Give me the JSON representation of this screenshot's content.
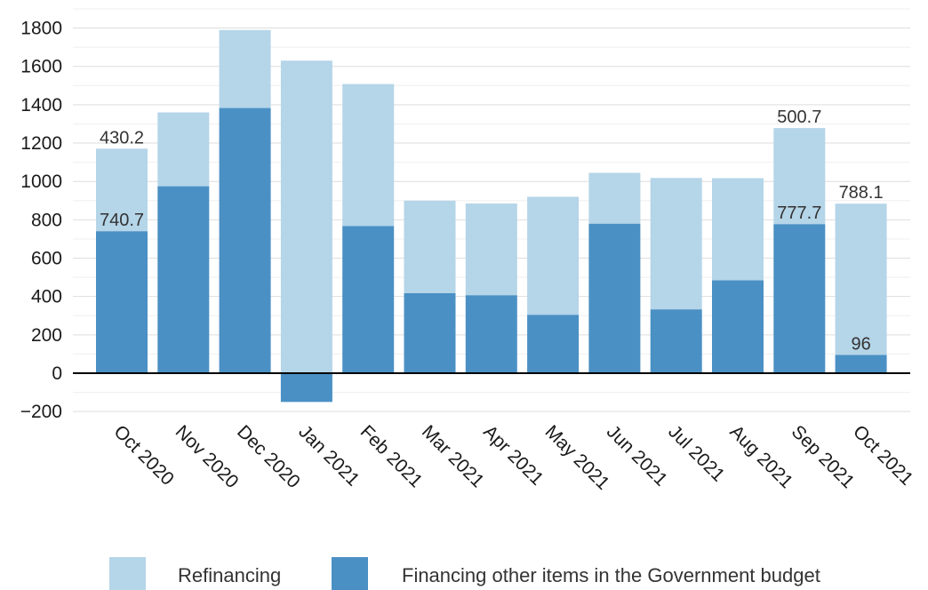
{
  "chart_data": {
    "type": "bar",
    "stacked": true,
    "categories": [
      "Oct 2020",
      "Nov 2020",
      "Dec 2020",
      "Jan 2021",
      "Feb 2021",
      "Mar 2021",
      "Apr 2021",
      "May 2021",
      "Jun 2021",
      "Jul 2021",
      "Aug 2021",
      "Sep 2021",
      "Oct 2021"
    ],
    "series": [
      {
        "name": "Financing other items in the Government budget",
        "color": "#4a90c4",
        "values": [
          740.7,
          975,
          1383,
          -150,
          768,
          418,
          407,
          305,
          780,
          333,
          485,
          777.7,
          96
        ]
      },
      {
        "name": "Refinancing",
        "color": "#b5d5e8",
        "values": [
          430.2,
          385,
          407,
          1630,
          740,
          482,
          478,
          615,
          265,
          685,
          532,
          500.7,
          788.1
        ]
      }
    ],
    "data_labels": [
      {
        "category": "Oct 2020",
        "series": "Refinancing",
        "text": "430.2"
      },
      {
        "category": "Oct 2020",
        "series": "Financing other items in the Government budget",
        "text": "740.7"
      },
      {
        "category": "Sep 2021",
        "series": "Refinancing",
        "text": "500.7"
      },
      {
        "category": "Sep 2021",
        "series": "Financing other items in the Government budget",
        "text": "777.7"
      },
      {
        "category": "Oct 2021",
        "series": "Refinancing",
        "text": "788.1"
      },
      {
        "category": "Oct 2021",
        "series": "Financing other items in the Government budget",
        "text": "96"
      }
    ],
    "y_ticks": [
      -200,
      0,
      200,
      400,
      600,
      800,
      1000,
      1200,
      1400,
      1600,
      1800
    ],
    "y_tick_labels": [
      "−200",
      "0",
      "200",
      "400",
      "600",
      "800",
      "1000",
      "1200",
      "1400",
      "1600",
      "1800"
    ],
    "ylim": [
      -200,
      1900
    ],
    "grid": true,
    "legend_position": "bottom",
    "legend_order": [
      "Refinancing",
      "Financing other items in the Government budget"
    ],
    "title": "",
    "xlabel": "",
    "ylabel": ""
  }
}
